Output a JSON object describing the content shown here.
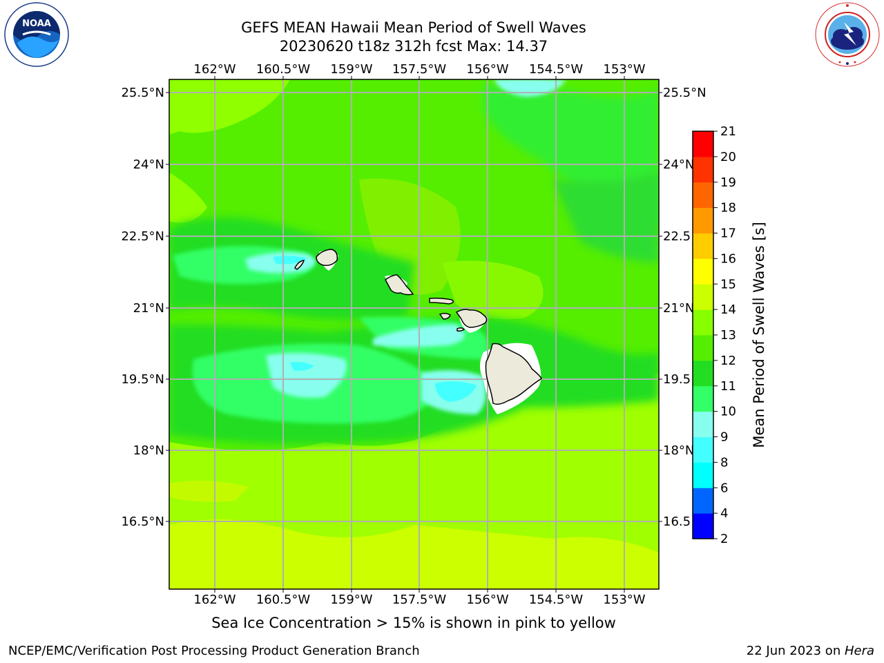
{
  "title": {
    "line1": "GEFS MEAN Hawaii Mean Period of Swell Waves",
    "line2": "20230620 t18z 312h fcst   Max: 14.37"
  },
  "logos": {
    "left": {
      "name": "noaa-logo",
      "text": "NOAA",
      "ring_text": "NATIONAL OCEANIC AND ATMOSPHERIC ADMINISTRATION · U.S. DEPARTMENT OF COMMERCE"
    },
    "right": {
      "name": "nws-logo",
      "ring_text": "NATIONAL WEATHER SERVICE"
    }
  },
  "map": {
    "lon_labels": [
      "162°W",
      "160.5°W",
      "159°W",
      "157.5°W",
      "156°W",
      "154.5°W",
      "153°W"
    ],
    "lat_labels_left": [
      "25.5°N",
      "24°N",
      "22.5°N",
      "21°N",
      "19.5°N",
      "18°N",
      "16.5°N"
    ],
    "lat_labels_right": [
      "25.5°N",
      "24°N",
      "22.5",
      "21°N",
      "19.5",
      "18°N",
      "16.5"
    ],
    "land_color": "#eceadb",
    "grid_color": "#b0b0b0"
  },
  "colorbar": {
    "label": "Mean Period of Swell Waves [s]",
    "ticks": [
      "2",
      "4",
      "6",
      "8",
      "9",
      "10",
      "11",
      "12",
      "13",
      "14",
      "15",
      "16",
      "17",
      "18",
      "19",
      "20",
      "21"
    ],
    "colors": [
      "#0000ff",
      "#0066ff",
      "#00ffff",
      "#44ffff",
      "#88ffee",
      "#33ff66",
      "#22dd22",
      "#55ee00",
      "#88ff00",
      "#ccff00",
      "#ffff00",
      "#ffcc00",
      "#ff9900",
      "#ff6600",
      "#ff3300",
      "#ff0000"
    ]
  },
  "caption": "Sea Ice Concentration > 15% is shown in pink to yellow",
  "footer": {
    "left": "NCEP/EMC/Verification Post Processing Product Generation Branch",
    "right_prefix": "22 Jun 2023 on ",
    "right_italic": "Hera"
  }
}
